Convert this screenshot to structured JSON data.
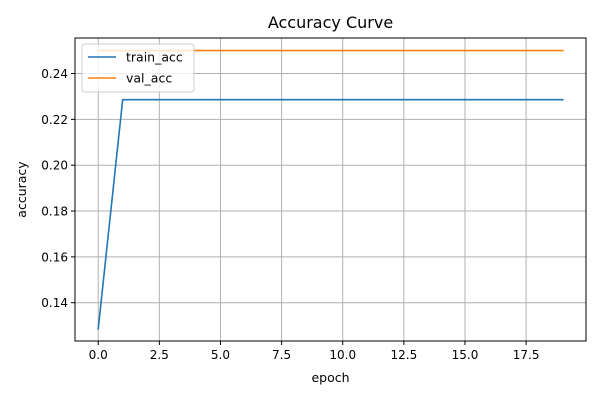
{
  "chart_data": {
    "type": "line",
    "title": "Accuracy Curve",
    "xlabel": "epoch",
    "ylabel": "accuracy",
    "xlim": [
      -0.95,
      19.95
    ],
    "ylim": [
      0.1233,
      0.2555
    ],
    "x_ticks": [
      0,
      2.5,
      5,
      7.5,
      10,
      12.5,
      15,
      17.5
    ],
    "x_tick_labels": [
      "0.0",
      "2.5",
      "5.0",
      "7.5",
      "10.0",
      "12.5",
      "15.0",
      "17.5"
    ],
    "y_ticks": [
      0.14,
      0.16,
      0.18,
      0.2,
      0.22,
      0.24
    ],
    "y_tick_labels": [
      "0.14",
      "0.16",
      "0.18",
      "0.20",
      "0.22",
      "0.24"
    ],
    "grid": true,
    "legend_position": "top-left",
    "x": [
      0,
      1,
      2,
      3,
      4,
      5,
      6,
      7,
      8,
      9,
      10,
      11,
      12,
      13,
      14,
      15,
      16,
      17,
      18,
      19
    ],
    "series": [
      {
        "name": "train_acc",
        "color": "#1f77b4",
        "values": [
          0.1286,
          0.2286,
          0.2286,
          0.2286,
          0.2286,
          0.2286,
          0.2286,
          0.2286,
          0.2286,
          0.2286,
          0.2286,
          0.2286,
          0.2286,
          0.2286,
          0.2286,
          0.2286,
          0.2286,
          0.2286,
          0.2286,
          0.2286
        ]
      },
      {
        "name": "val_acc",
        "color": "#ff7f0e",
        "values": [
          0.25,
          0.25,
          0.25,
          0.25,
          0.25,
          0.25,
          0.25,
          0.25,
          0.25,
          0.25,
          0.25,
          0.25,
          0.25,
          0.25,
          0.25,
          0.25,
          0.25,
          0.25,
          0.25,
          0.25
        ]
      }
    ]
  }
}
